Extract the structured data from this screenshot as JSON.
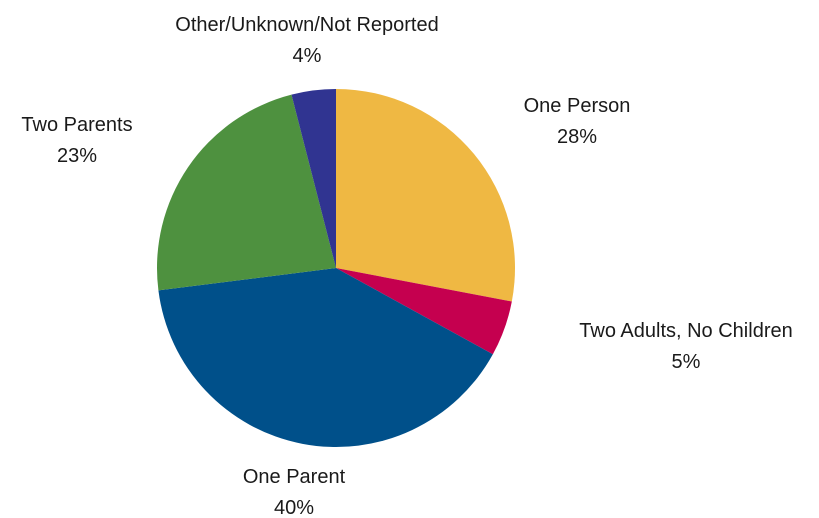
{
  "chart_data": {
    "type": "pie",
    "title": "",
    "slices": [
      {
        "label": "One Person",
        "value": 28,
        "display": "28%",
        "color": "#EFB843"
      },
      {
        "label": "Two Adults, No Children",
        "value": 5,
        "display": "5%",
        "color": "#C5004F"
      },
      {
        "label": "One Parent",
        "value": 40,
        "display": "40%",
        "color": "#00508A"
      },
      {
        "label": "Two Parents",
        "value": 23,
        "display": "23%",
        "color": "#4E913F"
      },
      {
        "label": "Other/Unknown/Not Reported",
        "value": 4,
        "display": "4%",
        "color": "#303491"
      }
    ],
    "start_angle": "12 o'clock",
    "direction": "clockwise",
    "legend": "none"
  }
}
